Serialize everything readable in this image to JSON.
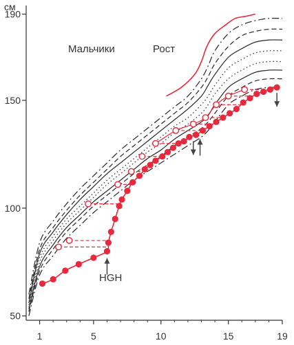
{
  "chart_data": {
    "type": "line",
    "title": "",
    "y_unit_label": "см",
    "group_label": "Мальчики",
    "measure_label": "Рост",
    "treatment_label": "HGH",
    "x_ticks": [
      "1",
      "5",
      "10",
      "15",
      "19"
    ],
    "y_ticks": [
      "50",
      "100",
      "150",
      "190"
    ],
    "xlim": [
      0,
      19
    ],
    "ylim": [
      48,
      194
    ],
    "grid": false,
    "reference_percentiles": [
      {
        "style": "dashdot",
        "color": "#333333",
        "x": [
          0.2,
          1,
          2,
          3,
          4,
          5,
          6,
          7,
          8,
          9,
          10,
          11,
          12,
          13,
          13.5,
          14,
          15,
          16,
          17,
          18,
          19
        ],
        "y": [
          60,
          84,
          94,
          102,
          109,
          115,
          121,
          127,
          132,
          137,
          142,
          147,
          152,
          160,
          166,
          173,
          181,
          185,
          187,
          188,
          188
        ]
      },
      {
        "style": "dashed",
        "color": "#333333",
        "x": [
          0.2,
          1,
          2,
          3,
          4,
          5,
          6,
          7,
          8,
          9,
          10,
          11,
          12,
          13,
          13.5,
          14,
          15,
          16,
          17,
          18,
          19
        ],
        "y": [
          58,
          81,
          91,
          99,
          106,
          112,
          118,
          124,
          129,
          134,
          139,
          144,
          149,
          156,
          161,
          167,
          175,
          180,
          182,
          183,
          183
        ]
      },
      {
        "style": "solid",
        "color": "#333333",
        "x": [
          0.2,
          1,
          2,
          3,
          4,
          5,
          6,
          7,
          8,
          9,
          10,
          11,
          12,
          13,
          13.5,
          14,
          15,
          16,
          17,
          18,
          19
        ],
        "y": [
          56,
          79,
          89,
          97,
          104,
          110,
          116,
          121,
          126,
          131,
          136,
          141,
          146,
          152,
          157,
          162,
          170,
          174,
          177,
          178,
          178
        ]
      },
      {
        "style": "dotted",
        "color": "#333333",
        "x": [
          0.2,
          1,
          2,
          3,
          4,
          5,
          6,
          7,
          8,
          9,
          10,
          11,
          12,
          13,
          13.5,
          14,
          15,
          16,
          17,
          18,
          19
        ],
        "y": [
          55,
          77,
          87,
          95,
          101,
          107,
          113,
          118,
          123,
          128,
          133,
          138,
          142,
          148,
          152,
          157,
          165,
          169,
          172,
          173,
          173
        ]
      },
      {
        "style": "dotted",
        "color": "#333333",
        "x": [
          0.2,
          1,
          2,
          3,
          4,
          5,
          6,
          7,
          8,
          9,
          10,
          11,
          12,
          13,
          13.5,
          14,
          15,
          16,
          17,
          18,
          19
        ],
        "y": [
          54,
          75,
          85,
          93,
          99,
          105,
          111,
          116,
          121,
          126,
          130,
          135,
          139,
          144,
          148,
          153,
          160,
          164,
          167,
          168,
          168
        ]
      },
      {
        "style": "solid",
        "color": "#333333",
        "x": [
          0.2,
          1,
          2,
          3,
          4,
          5,
          6,
          7,
          8,
          9,
          10,
          11,
          12,
          13,
          13.5,
          14,
          15,
          16,
          17,
          18,
          19
        ],
        "y": [
          53,
          73,
          83,
          91,
          97,
          103,
          108,
          113,
          118,
          123,
          127,
          132,
          136,
          140,
          143,
          148,
          156,
          160,
          163,
          164,
          164
        ]
      },
      {
        "style": "dashed",
        "color": "#333333",
        "x": [
          0.2,
          1,
          2,
          3,
          4,
          5,
          6,
          7,
          8,
          9,
          10,
          11,
          12,
          13,
          13.5,
          14,
          15,
          16,
          17,
          18,
          19
        ],
        "y": [
          52,
          71,
          81,
          89,
          95,
          101,
          106,
          111,
          116,
          120,
          124,
          129,
          133,
          137,
          140,
          144,
          152,
          156,
          159,
          160,
          160
        ]
      },
      {
        "style": "dashdot",
        "color": "#333333",
        "x": [
          0.2,
          1,
          2,
          3,
          4,
          5,
          6,
          7,
          8,
          9,
          10,
          11,
          12,
          13,
          13.5,
          14,
          15,
          16,
          17,
          18,
          19
        ],
        "y": [
          50,
          69,
          78,
          86,
          92,
          98,
          103,
          108,
          113,
          117,
          121,
          125,
          129,
          133,
          136,
          140,
          148,
          152,
          155,
          156,
          156
        ]
      }
    ],
    "series": [
      {
        "color": "#e8283c",
        "marker": "filled-circle",
        "x": [
          1.2,
          2,
          2.9,
          3.9,
          5,
          6,
          6.1,
          6.3,
          6.6,
          6.9,
          7.1,
          7.5,
          7.9,
          8.4,
          8.8,
          9.2,
          9.6,
          10.1,
          10.5,
          10.9,
          11.3,
          11.7,
          12.1,
          12.6,
          13.1,
          13.6,
          14.1,
          14.6,
          15.1,
          15.6,
          16.1,
          16.6,
          17.1,
          17.6,
          18.1,
          18.6
        ],
        "y": [
          65,
          67,
          71,
          74,
          77,
          80,
          84,
          89,
          95,
          101,
          104,
          108,
          112,
          115,
          118,
          120,
          122,
          124,
          126,
          128,
          130,
          131,
          133,
          134,
          136,
          138,
          140,
          142,
          144,
          146,
          149,
          151,
          153,
          154,
          155,
          156
        ]
      },
      {
        "color": "#e8283c",
        "marker": "open-circle",
        "x": [
          2.4,
          3.2,
          4.6,
          6.8,
          7.8,
          8.6,
          9.6,
          11.1,
          12.4,
          13.3,
          14.1,
          15,
          16.2
        ],
        "y": [
          82,
          85,
          102,
          111,
          117,
          124,
          130,
          136,
          139,
          142,
          148,
          152,
          155
        ]
      },
      {
        "color": "#e8283c",
        "style": "solid",
        "x": [
          10.4,
          11.5,
          12.5,
          13.0,
          13.4,
          14.0,
          14.8,
          15.5,
          16.3,
          17.0
        ],
        "y": [
          152,
          156,
          162,
          168,
          175,
          181,
          185,
          188,
          189,
          190
        ]
      }
    ],
    "arrows": [
      {
        "x": 6.0,
        "direction": "up"
      },
      {
        "x": 12.4,
        "direction": "down"
      },
      {
        "x": 12.9,
        "direction": "up"
      },
      {
        "x": 18.6,
        "direction": "down"
      }
    ]
  }
}
